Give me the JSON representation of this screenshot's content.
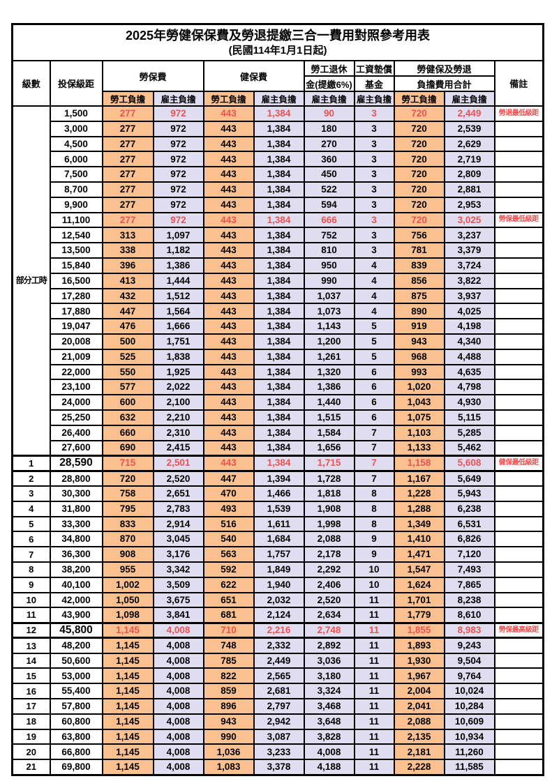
{
  "title": "2025年勞健保保費及勞退提繳三合一費用對照參考用表",
  "subtitle": "(民國114年1月1日起)",
  "colors": {
    "employee_column_fill": "#FAC08F",
    "employer_column_fill": "#E1DDF0",
    "highlight_text": "#ED5151",
    "grid_line": "#000000"
  },
  "header": {
    "col_level": "級數",
    "col_bracket": "投保級距",
    "group_labor_insurance": "勞保費",
    "group_health_insurance": "健保費",
    "group_pension_line1": "勞工退休",
    "group_pension_line2": "金(提繳6%)",
    "group_wage_fund_line1": "工資墊償",
    "group_wage_fund_line2": "基金",
    "group_total_line1": "勞健保及勞退",
    "group_total_line2": "負擔費用合計",
    "col_note": "備註",
    "sub_employee": "勞工負擔",
    "sub_employer": "雇主負擔"
  },
  "part_time_label": "部分工時",
  "part_time_rowspan": 23,
  "rows": [
    {
      "lv": "",
      "br": "1,500",
      "v": [
        "277",
        "972",
        "443",
        "1,384",
        "90",
        "3",
        "720",
        "2,449"
      ],
      "n": "勞退最低級距",
      "red": true,
      "emph": false,
      "thick": false
    },
    {
      "lv": "",
      "br": "3,000",
      "v": [
        "277",
        "972",
        "443",
        "1,384",
        "180",
        "3",
        "720",
        "2,539"
      ],
      "n": "",
      "red": false,
      "emph": false,
      "thick": false
    },
    {
      "lv": "",
      "br": "4,500",
      "v": [
        "277",
        "972",
        "443",
        "1,384",
        "270",
        "3",
        "720",
        "2,629"
      ],
      "n": "",
      "red": false,
      "emph": false,
      "thick": false
    },
    {
      "lv": "",
      "br": "6,000",
      "v": [
        "277",
        "972",
        "443",
        "1,384",
        "360",
        "3",
        "720",
        "2,719"
      ],
      "n": "",
      "red": false,
      "emph": false,
      "thick": false
    },
    {
      "lv": "",
      "br": "7,500",
      "v": [
        "277",
        "972",
        "443",
        "1,384",
        "450",
        "3",
        "720",
        "2,809"
      ],
      "n": "",
      "red": false,
      "emph": false,
      "thick": false
    },
    {
      "lv": "",
      "br": "8,700",
      "v": [
        "277",
        "972",
        "443",
        "1,384",
        "522",
        "3",
        "720",
        "2,881"
      ],
      "n": "",
      "red": false,
      "emph": false,
      "thick": false
    },
    {
      "lv": "",
      "br": "9,900",
      "v": [
        "277",
        "972",
        "443",
        "1,384",
        "594",
        "3",
        "720",
        "2,953"
      ],
      "n": "",
      "red": false,
      "emph": false,
      "thick": false
    },
    {
      "lv": "",
      "br": "11,100",
      "v": [
        "277",
        "972",
        "443",
        "1,384",
        "666",
        "3",
        "720",
        "3,025"
      ],
      "n": "勞保最低級距",
      "red": true,
      "emph": false,
      "thick": false
    },
    {
      "lv": "",
      "br": "12,540",
      "v": [
        "313",
        "1,097",
        "443",
        "1,384",
        "752",
        "3",
        "756",
        "3,237"
      ],
      "n": "",
      "red": false,
      "emph": false,
      "thick": false
    },
    {
      "lv": "",
      "br": "13,500",
      "v": [
        "338",
        "1,182",
        "443",
        "1,384",
        "810",
        "3",
        "781",
        "3,379"
      ],
      "n": "",
      "red": false,
      "emph": false,
      "thick": false
    },
    {
      "lv": "",
      "br": "15,840",
      "v": [
        "396",
        "1,386",
        "443",
        "1,384",
        "950",
        "4",
        "839",
        "3,724"
      ],
      "n": "",
      "red": false,
      "emph": false,
      "thick": false
    },
    {
      "lv": "",
      "br": "16,500",
      "v": [
        "413",
        "1,444",
        "443",
        "1,384",
        "990",
        "4",
        "856",
        "3,822"
      ],
      "n": "",
      "red": false,
      "emph": false,
      "thick": false
    },
    {
      "lv": "",
      "br": "17,280",
      "v": [
        "432",
        "1,512",
        "443",
        "1,384",
        "1,037",
        "4",
        "875",
        "3,937"
      ],
      "n": "",
      "red": false,
      "emph": false,
      "thick": false
    },
    {
      "lv": "",
      "br": "17,880",
      "v": [
        "447",
        "1,564",
        "443",
        "1,384",
        "1,073",
        "4",
        "890",
        "4,025"
      ],
      "n": "",
      "red": false,
      "emph": false,
      "thick": false
    },
    {
      "lv": "",
      "br": "19,047",
      "v": [
        "476",
        "1,666",
        "443",
        "1,384",
        "1,143",
        "5",
        "919",
        "4,198"
      ],
      "n": "",
      "red": false,
      "emph": false,
      "thick": false
    },
    {
      "lv": "",
      "br": "20,008",
      "v": [
        "500",
        "1,751",
        "443",
        "1,384",
        "1,200",
        "5",
        "943",
        "4,340"
      ],
      "n": "",
      "red": false,
      "emph": false,
      "thick": false
    },
    {
      "lv": "",
      "br": "21,009",
      "v": [
        "525",
        "1,838",
        "443",
        "1,384",
        "1,261",
        "5",
        "968",
        "4,488"
      ],
      "n": "",
      "red": false,
      "emph": false,
      "thick": false
    },
    {
      "lv": "",
      "br": "22,000",
      "v": [
        "550",
        "1,925",
        "443",
        "1,384",
        "1,320",
        "6",
        "993",
        "4,635"
      ],
      "n": "",
      "red": false,
      "emph": false,
      "thick": false
    },
    {
      "lv": "",
      "br": "23,100",
      "v": [
        "577",
        "2,022",
        "443",
        "1,384",
        "1,386",
        "6",
        "1,020",
        "4,798"
      ],
      "n": "",
      "red": false,
      "emph": false,
      "thick": false
    },
    {
      "lv": "",
      "br": "24,000",
      "v": [
        "600",
        "2,100",
        "443",
        "1,384",
        "1,440",
        "6",
        "1,043",
        "4,930"
      ],
      "n": "",
      "red": false,
      "emph": false,
      "thick": false
    },
    {
      "lv": "",
      "br": "25,250",
      "v": [
        "632",
        "2,210",
        "443",
        "1,384",
        "1,515",
        "6",
        "1,075",
        "5,115"
      ],
      "n": "",
      "red": false,
      "emph": false,
      "thick": false
    },
    {
      "lv": "",
      "br": "26,400",
      "v": [
        "660",
        "2,310",
        "443",
        "1,384",
        "1,584",
        "7",
        "1,103",
        "5,285"
      ],
      "n": "",
      "red": false,
      "emph": false,
      "thick": false
    },
    {
      "lv": "",
      "br": "27,600",
      "v": [
        "690",
        "2,415",
        "443",
        "1,384",
        "1,656",
        "7",
        "1,133",
        "5,462"
      ],
      "n": "",
      "red": false,
      "emph": false,
      "thick": false
    },
    {
      "lv": "1",
      "br": "28,590",
      "v": [
        "715",
        "2,501",
        "443",
        "1,384",
        "1,715",
        "7",
        "1,158",
        "5,608"
      ],
      "n": "健保最低級距",
      "red": true,
      "emph": true,
      "thick": true
    },
    {
      "lv": "2",
      "br": "28,800",
      "v": [
        "720",
        "2,520",
        "447",
        "1,394",
        "1,728",
        "7",
        "1,167",
        "5,649"
      ],
      "n": "",
      "red": false,
      "emph": false,
      "thick": false
    },
    {
      "lv": "3",
      "br": "30,300",
      "v": [
        "758",
        "2,651",
        "470",
        "1,466",
        "1,818",
        "8",
        "1,228",
        "5,943"
      ],
      "n": "",
      "red": false,
      "emph": false,
      "thick": false
    },
    {
      "lv": "4",
      "br": "31,800",
      "v": [
        "795",
        "2,783",
        "493",
        "1,539",
        "1,908",
        "8",
        "1,288",
        "6,238"
      ],
      "n": "",
      "red": false,
      "emph": false,
      "thick": false
    },
    {
      "lv": "5",
      "br": "33,300",
      "v": [
        "833",
        "2,914",
        "516",
        "1,611",
        "1,998",
        "8",
        "1,349",
        "6,531"
      ],
      "n": "",
      "red": false,
      "emph": false,
      "thick": false
    },
    {
      "lv": "6",
      "br": "34,800",
      "v": [
        "870",
        "3,045",
        "540",
        "1,684",
        "2,088",
        "9",
        "1,410",
        "6,826"
      ],
      "n": "",
      "red": false,
      "emph": false,
      "thick": false
    },
    {
      "lv": "7",
      "br": "36,300",
      "v": [
        "908",
        "3,176",
        "563",
        "1,757",
        "2,178",
        "9",
        "1,471",
        "7,120"
      ],
      "n": "",
      "red": false,
      "emph": false,
      "thick": false
    },
    {
      "lv": "8",
      "br": "38,200",
      "v": [
        "955",
        "3,342",
        "592",
        "1,849",
        "2,292",
        "10",
        "1,547",
        "7,493"
      ],
      "n": "",
      "red": false,
      "emph": false,
      "thick": false
    },
    {
      "lv": "9",
      "br": "40,100",
      "v": [
        "1,002",
        "3,509",
        "622",
        "1,940",
        "2,406",
        "10",
        "1,624",
        "7,865"
      ],
      "n": "",
      "red": false,
      "emph": false,
      "thick": false
    },
    {
      "lv": "10",
      "br": "42,000",
      "v": [
        "1,050",
        "3,675",
        "651",
        "2,032",
        "2,520",
        "11",
        "1,701",
        "8,238"
      ],
      "n": "",
      "red": false,
      "emph": false,
      "thick": false
    },
    {
      "lv": "11",
      "br": "43,900",
      "v": [
        "1,098",
        "3,841",
        "681",
        "2,124",
        "2,634",
        "11",
        "1,779",
        "8,610"
      ],
      "n": "",
      "red": false,
      "emph": false,
      "thick": false
    },
    {
      "lv": "12",
      "br": "45,800",
      "v": [
        "1,145",
        "4,008",
        "710",
        "2,216",
        "2,748",
        "11",
        "1,855",
        "8,983"
      ],
      "n": "勞保最高級距",
      "red": true,
      "emph": true,
      "thick": true
    },
    {
      "lv": "13",
      "br": "48,200",
      "v": [
        "1,145",
        "4,008",
        "748",
        "2,332",
        "2,892",
        "11",
        "1,893",
        "9,243"
      ],
      "n": "",
      "red": false,
      "emph": false,
      "thick": false
    },
    {
      "lv": "14",
      "br": "50,600",
      "v": [
        "1,145",
        "4,008",
        "785",
        "2,449",
        "3,036",
        "11",
        "1,930",
        "9,504"
      ],
      "n": "",
      "red": false,
      "emph": false,
      "thick": false
    },
    {
      "lv": "15",
      "br": "53,000",
      "v": [
        "1,145",
        "4,008",
        "822",
        "2,565",
        "3,180",
        "11",
        "1,967",
        "9,764"
      ],
      "n": "",
      "red": false,
      "emph": false,
      "thick": false
    },
    {
      "lv": "16",
      "br": "55,400",
      "v": [
        "1,145",
        "4,008",
        "859",
        "2,681",
        "3,324",
        "11",
        "2,004",
        "10,024"
      ],
      "n": "",
      "red": false,
      "emph": false,
      "thick": false
    },
    {
      "lv": "17",
      "br": "57,800",
      "v": [
        "1,145",
        "4,008",
        "896",
        "2,797",
        "3,468",
        "11",
        "2,041",
        "10,284"
      ],
      "n": "",
      "red": false,
      "emph": false,
      "thick": false
    },
    {
      "lv": "18",
      "br": "60,800",
      "v": [
        "1,145",
        "4,008",
        "943",
        "2,942",
        "3,648",
        "11",
        "2,088",
        "10,609"
      ],
      "n": "",
      "red": false,
      "emph": false,
      "thick": false
    },
    {
      "lv": "19",
      "br": "63,800",
      "v": [
        "1,145",
        "4,008",
        "990",
        "3,087",
        "3,828",
        "11",
        "2,135",
        "10,934"
      ],
      "n": "",
      "red": false,
      "emph": false,
      "thick": false
    },
    {
      "lv": "20",
      "br": "66,800",
      "v": [
        "1,145",
        "4,008",
        "1,036",
        "3,233",
        "4,008",
        "11",
        "2,181",
        "11,260"
      ],
      "n": "",
      "red": false,
      "emph": false,
      "thick": false
    },
    {
      "lv": "21",
      "br": "69,800",
      "v": [
        "1,145",
        "4,008",
        "1,083",
        "3,378",
        "4,188",
        "11",
        "2,228",
        "11,585"
      ],
      "n": "",
      "red": false,
      "emph": false,
      "thick": false
    }
  ],
  "value_column_styles": [
    "org",
    "lav",
    "org",
    "lav",
    "lav",
    "lav",
    "org",
    "lav"
  ]
}
